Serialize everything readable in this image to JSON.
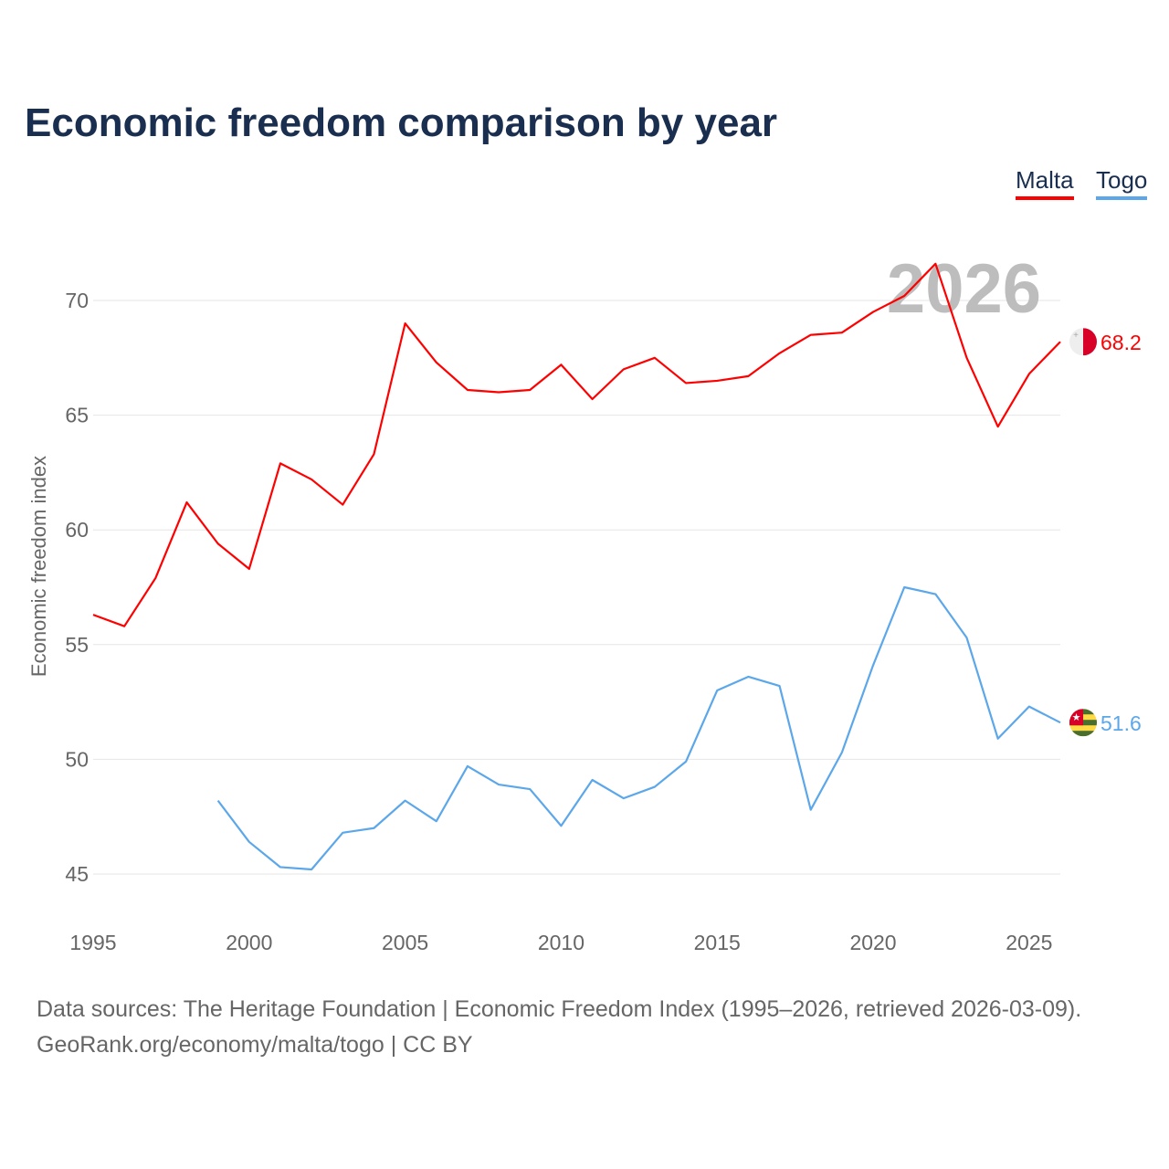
{
  "title": "Economic freedom comparison by year",
  "year_watermark": "2026",
  "source_line1": "Data sources: The Heritage Foundation | Economic Freedom Index (1995–2026, retrieved 2026-03-09).",
  "source_line2": "GeoRank.org/economy/malta/togo | CC BY",
  "chart_data": {
    "type": "line",
    "title": "Economic freedom comparison by year",
    "ylabel": "Economic freedom index",
    "xlabel": "",
    "xlim": [
      1995,
      2026
    ],
    "ylim": [
      43,
      73
    ],
    "xticks": [
      1995,
      2000,
      2005,
      2010,
      2015,
      2020,
      2025
    ],
    "yticks": [
      45,
      50,
      55,
      60,
      65,
      70
    ],
    "legend": "top-right",
    "series": [
      {
        "name": "Malta",
        "color": "#ff0000",
        "end_label": "68.2",
        "start": 1995,
        "values": [
          56.3,
          55.8,
          57.9,
          61.2,
          59.4,
          58.3,
          62.9,
          62.2,
          61.1,
          63.3,
          69.0,
          67.3,
          66.1,
          66.0,
          66.1,
          67.2,
          65.7,
          67.0,
          67.5,
          66.4,
          66.5,
          66.7,
          67.7,
          68.5,
          68.6,
          69.5,
          70.2,
          71.6,
          67.5,
          64.5,
          66.8,
          68.2
        ]
      },
      {
        "name": "Togo",
        "color": "#5ba7ea",
        "end_label": "51.6",
        "start": 1999,
        "values": [
          48.2,
          46.4,
          45.3,
          45.2,
          46.8,
          47.0,
          48.2,
          47.3,
          49.7,
          48.9,
          48.7,
          47.1,
          49.1,
          48.3,
          48.8,
          49.9,
          53.0,
          53.6,
          53.2,
          47.8,
          50.3,
          54.1,
          57.5,
          57.2,
          55.3,
          50.9,
          52.3,
          51.6
        ]
      }
    ]
  }
}
